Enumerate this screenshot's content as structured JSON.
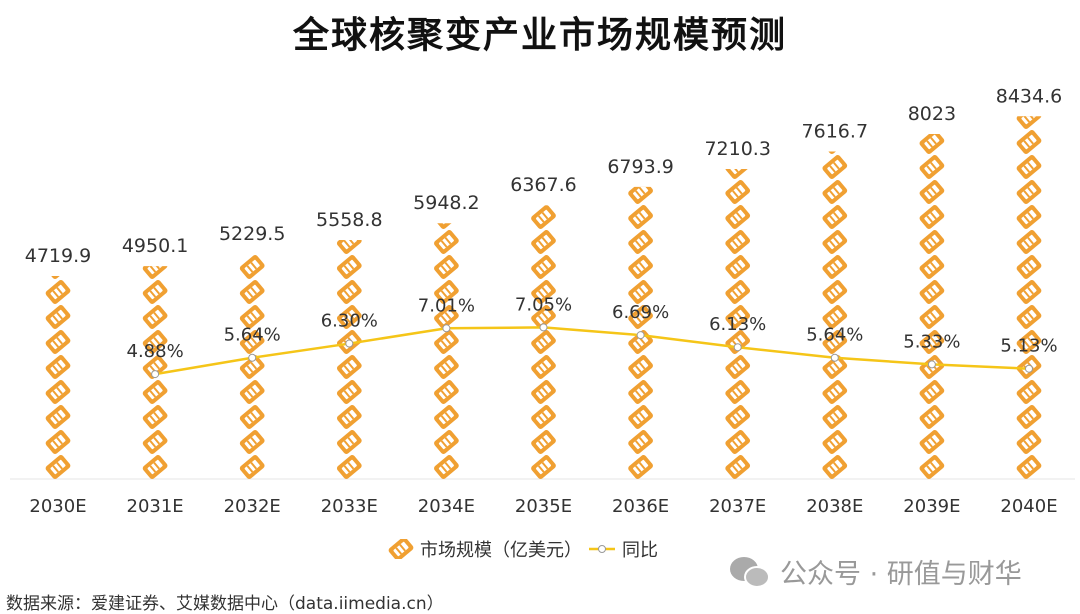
{
  "title": "全球核聚变产业市场规模预测",
  "chart_data": {
    "type": "bar+line",
    "title": "全球核聚变产业市场规模预测",
    "categories": [
      "2030E",
      "2031E",
      "2032E",
      "2033E",
      "2034E",
      "2035E",
      "2036E",
      "2037E",
      "2038E",
      "2039E",
      "2040E"
    ],
    "series": [
      {
        "name": "市场规模（亿美元）",
        "type": "pictograph-bar",
        "color": "#f0a032",
        "values": [
          4719.9,
          4950.1,
          5229.5,
          5558.8,
          5948.2,
          6367.6,
          6793.9,
          7210.3,
          7616.7,
          8023,
          8434.6
        ],
        "labels": [
          "4719.9",
          "4950.1",
          "5229.5",
          "5558.8",
          "5948.2",
          "6367.6",
          "6793.9",
          "7210.3",
          "7616.7",
          "8023",
          "8434.6"
        ]
      },
      {
        "name": "同比",
        "type": "line",
        "color": "#f5c518",
        "values": [
          null,
          4.88,
          5.64,
          6.3,
          7.01,
          7.05,
          6.69,
          6.13,
          5.64,
          5.33,
          5.13
        ],
        "labels": [
          "",
          "4.88%",
          "5.64%",
          "6.30%",
          "7.01%",
          "7.05%",
          "6.69%",
          "6.13%",
          "5.64%",
          "5.33%",
          "5.13%"
        ]
      }
    ],
    "ylim_bar": [
      0,
      10000
    ],
    "ylim_line": [
      0,
      20
    ],
    "grid": false,
    "legend": "bottom"
  },
  "source": "数据来源：爱建证券、艾媒数据中心（data.iimedia.cn）",
  "watermark": "公众号 · 研值与财华"
}
